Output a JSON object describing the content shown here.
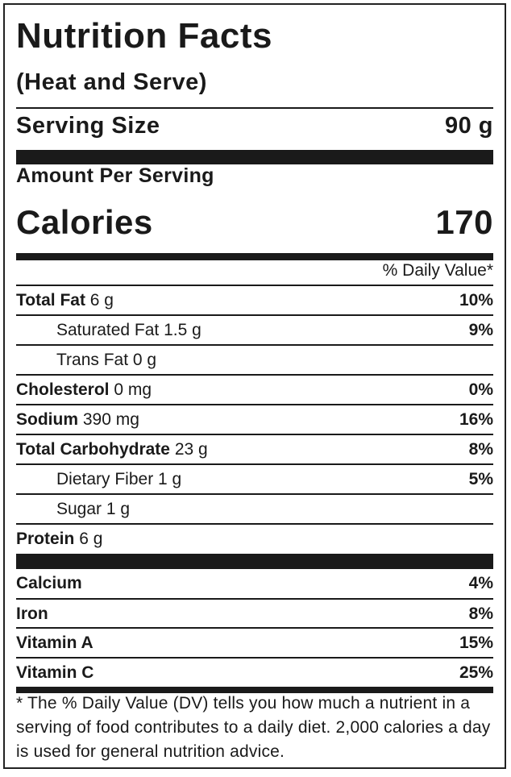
{
  "label": {
    "title": "Nutrition Facts",
    "subtitle": "(Heat and Serve)",
    "serving_size_label": "Serving Size",
    "serving_size_value": "90 g",
    "amount_per_serving": "Amount Per Serving",
    "calories_label": "Calories",
    "calories_value": "170",
    "daily_value_header": "% Daily Value*",
    "nutrients": [
      {
        "name": "Total Fat",
        "amount": "6 g",
        "pct": "10%"
      },
      {
        "name": "Saturated Fat",
        "amount": "1.5 g",
        "pct": "9%"
      },
      {
        "name": "Trans Fat",
        "amount": "0 g",
        "pct": ""
      },
      {
        "name": "Cholesterol",
        "amount": "0 mg",
        "pct": "0%"
      },
      {
        "name": "Sodium",
        "amount": "390 mg",
        "pct": "16%"
      },
      {
        "name": "Total Carbohydrate",
        "amount": "23 g",
        "pct": "8%"
      },
      {
        "name": "Dietary Fiber",
        "amount": "1 g",
        "pct": "5%"
      },
      {
        "name": "Sugar",
        "amount": "1 g",
        "pct": ""
      },
      {
        "name": "Protein",
        "amount": "6 g",
        "pct": ""
      }
    ],
    "vitamins": [
      {
        "name": "Calcium",
        "pct": "4%"
      },
      {
        "name": "Iron",
        "pct": "8%"
      },
      {
        "name": "Vitamin A",
        "pct": "15%"
      },
      {
        "name": "Vitamin C",
        "pct": "25%"
      }
    ],
    "footnote": "* The % Daily Value (DV) tells you how much a nutrient in a serving of food contributes to a daily diet. 2,000 calories a day is used for general nutrition advice."
  }
}
